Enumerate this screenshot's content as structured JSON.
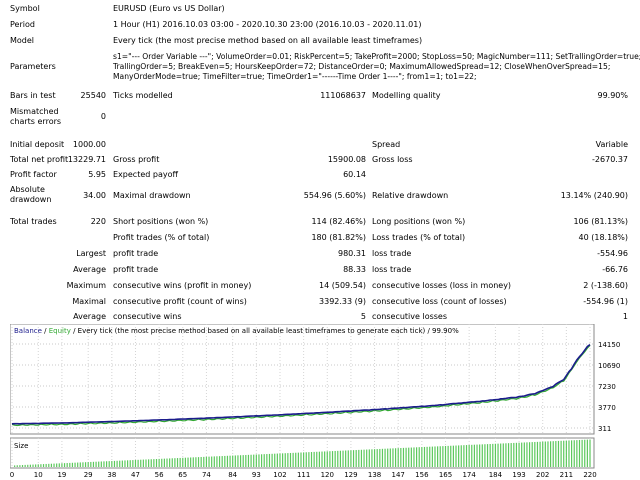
{
  "header": [
    {
      "label": "Symbol",
      "value": "EURUSD (Euro vs US Dollar)"
    },
    {
      "label": "Period",
      "value": "1 Hour (H1) 2016.10.03 03:00 - 2020.10.30 23:00 (2016.10.03 - 2020.11.01)"
    },
    {
      "label": "Model",
      "value": "Every tick (the most precise method based on all available least timeframes)"
    }
  ],
  "parameters": {
    "label": "Parameters",
    "line1": "s1=\"--- Order Variable ---\"; VolumeOrder=0.01; RiskPercent=5; TakeProfit=2000; StopLoss=50; MagicNumber=111; SetTrallingOrder=true;",
    "line2": "TrallingOrder=5; BreakEven=5; HoursKeepOrder=72; DistanceOrder=0; MaximumAllowedSpread=12; CloseWhenOverSpread=15;",
    "line3": "ManyOrderMode=true; TimeFilter=true; TimeOrder1=\"------Time Order 1----\"; from1=1; to1=22;"
  },
  "bars": {
    "label": "Bars in test",
    "value": "25540",
    "ticks_label": "Ticks modelled",
    "ticks_value": "111068637",
    "quality_label": "Modelling quality",
    "quality_value": "99.90%"
  },
  "mismatch": {
    "label": "Mismatched charts errors",
    "value": "0"
  },
  "summary": {
    "deposit_label": "Initial deposit",
    "deposit": "1000.00",
    "spread_label": "Spread",
    "spread": "Variable",
    "net_label": "Total net profit",
    "net": "13229.71",
    "gross_profit_label": "Gross profit",
    "gross_profit": "15900.08",
    "gross_loss_label": "Gross loss",
    "gross_loss": "-2670.37",
    "pf_label": "Profit factor",
    "pf": "5.95",
    "ep_label": "Expected payoff",
    "ep": "60.14",
    "abs_dd_label": "Absolute drawdown",
    "abs_dd": "34.00",
    "max_dd_label": "Maximal drawdown",
    "max_dd": "554.96 (5.60%)",
    "rel_dd_label": "Relative drawdown",
    "rel_dd": "13.14% (240.90)"
  },
  "trades": {
    "total_label": "Total trades",
    "total": "220",
    "short_label": "Short positions (won %)",
    "short": "114 (82.46%)",
    "long_label": "Long positions (won %)",
    "long": "106 (81.13%)",
    "pt_label": "Profit trades (% of total)",
    "pt": "180 (81.82%)",
    "lt_label": "Loss trades (% of total)",
    "lt": "40 (18.18%)",
    "largest": "Largest",
    "average": "Average",
    "maximum": "Maximum",
    "maximal": "Maximal",
    "profit_trade": "profit trade",
    "loss_trade": "loss trade",
    "lp": "980.31",
    "ll": "-554.96",
    "ap": "88.33",
    "al": "-66.76",
    "mcw_label": "consecutive wins (profit in money)",
    "mcw": "14 (509.54)",
    "mcl_label": "consecutive losses (loss in money)",
    "mcl": "2 (-138.60)",
    "mcp_label": "consecutive profit (count of wins)",
    "mcp": "3392.33 (9)",
    "mclo_label": "consecutive loss (count of losses)",
    "mclo": "-554.96 (1)",
    "acw_label": "consecutive wins",
    "acw": "5",
    "acl_label": "consecutive losses",
    "acl": "1"
  },
  "chart": {
    "legend_balance": "Balance",
    "legend_sep": " / ",
    "legend_equity": "Equity",
    "legend_rest": " / Every tick (the most precise method based on all available least timeframes to generate each tick) / 99.90%",
    "size_label": "Size",
    "balance_color": "#1c1c8c",
    "equity_color": "#32a832",
    "size_bar_color": "#5cc85c"
  },
  "chart_data": {
    "type": "line",
    "series": [
      {
        "name": "Balance"
      },
      {
        "name": "Equity"
      }
    ],
    "y_ticks": [
      "14150",
      "10690",
      "7230",
      "3770",
      "311"
    ],
    "x_ticks": [
      "0",
      "10",
      "19",
      "29",
      "38",
      "47",
      "56",
      "65",
      "74",
      "84",
      "93",
      "102",
      "111",
      "120",
      "129",
      "138",
      "147",
      "156",
      "165",
      "174",
      "184",
      "193",
      "202",
      "211",
      "220"
    ],
    "trade_index_range": [
      0,
      220
    ],
    "balance_points": [
      [
        0,
        1000
      ],
      [
        20,
        1150
      ],
      [
        40,
        1400
      ],
      [
        60,
        1700
      ],
      [
        80,
        2050
      ],
      [
        100,
        2450
      ],
      [
        120,
        2900
      ],
      [
        140,
        3400
      ],
      [
        160,
        4000
      ],
      [
        170,
        4400
      ],
      [
        180,
        4800
      ],
      [
        190,
        5300
      ],
      [
        195,
        5600
      ],
      [
        200,
        6150
      ],
      [
        205,
        7000
      ],
      [
        210,
        8300
      ],
      [
        215,
        11500
      ],
      [
        220,
        14229
      ]
    ]
  }
}
